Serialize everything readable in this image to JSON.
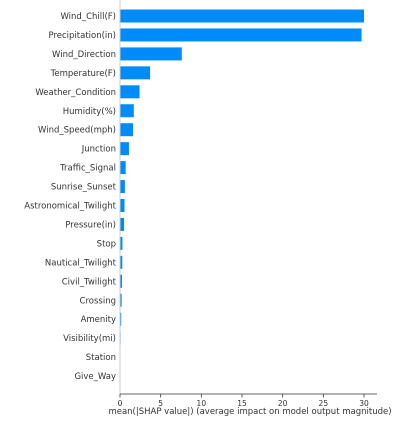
{
  "chart_data": {
    "type": "bar",
    "orientation": "horizontal",
    "categories": [
      "Wind_Chill(F)",
      "Precipitation(in)",
      "Wind_Direction",
      "Temperature(F)",
      "Weather_Condition",
      "Humidity(%)",
      "Wind_Speed(mph)",
      "Junction",
      "Traffic_Signal",
      "Sunrise_Sunset",
      "Astronomical_Twilight",
      "Pressure(in)",
      "Stop",
      "Nautical_Twilight",
      "Civil_Twilight",
      "Crossing",
      "Amenity",
      "Visibility(mi)",
      "Station",
      "Give_Way"
    ],
    "values": [
      30.0,
      29.7,
      7.6,
      3.7,
      2.4,
      1.7,
      1.6,
      1.1,
      0.7,
      0.6,
      0.55,
      0.5,
      0.3,
      0.28,
      0.25,
      0.2,
      0.15,
      0.08,
      0.05,
      0.03
    ],
    "xlabel": "mean(|SHAP value|) (average impact on model output magnitude)",
    "ylabel": "",
    "title": "",
    "xlim": [
      0,
      31.5
    ],
    "xticks": [
      0,
      5,
      10,
      15,
      20,
      25,
      30
    ],
    "bar_color": "#008bfb",
    "grid": false
  }
}
